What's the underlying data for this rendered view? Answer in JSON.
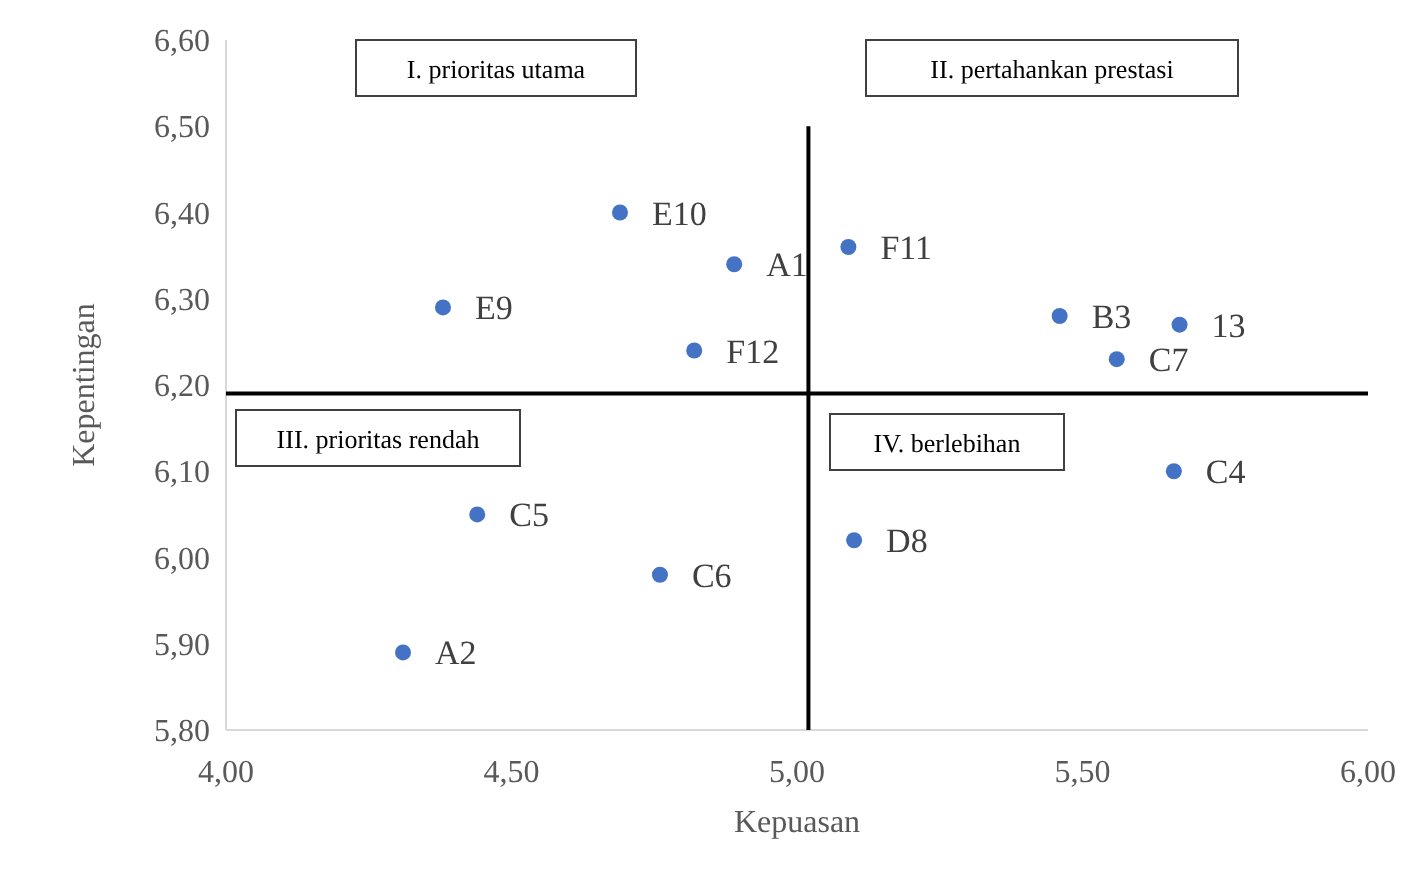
{
  "chart_data": {
    "type": "scatter",
    "xlabel": "Kepuasan",
    "ylabel": "Kepentingan",
    "xlim": [
      4.0,
      6.0
    ],
    "ylim": [
      5.8,
      6.6
    ],
    "xticks": [
      {
        "value": 4.0,
        "label": "4,00"
      },
      {
        "value": 4.5,
        "label": "4,50"
      },
      {
        "value": 5.0,
        "label": "5,00"
      },
      {
        "value": 5.5,
        "label": "5,50"
      },
      {
        "value": 6.0,
        "label": "6,00"
      }
    ],
    "yticks": [
      {
        "value": 5.8,
        "label": "5,80"
      },
      {
        "value": 5.9,
        "label": "5,90"
      },
      {
        "value": 6.0,
        "label": "6,00"
      },
      {
        "value": 6.1,
        "label": "6,10"
      },
      {
        "value": 6.2,
        "label": "6,20"
      },
      {
        "value": 6.3,
        "label": "6,30"
      },
      {
        "value": 6.4,
        "label": "6,40"
      },
      {
        "value": 6.5,
        "label": "6,50"
      },
      {
        "value": 6.6,
        "label": "6,60"
      }
    ],
    "grid": false,
    "series": [
      {
        "marker": "circle",
        "color": "#4472c4",
        "x": [
          4.69,
          4.89,
          4.38,
          4.82,
          5.09,
          5.46,
          5.67,
          5.56,
          5.66,
          5.1,
          4.44,
          4.76,
          4.31
        ],
        "values": [
          6.4,
          6.34,
          6.29,
          6.24,
          6.36,
          6.28,
          6.27,
          6.23,
          6.1,
          6.02,
          6.05,
          5.98,
          5.89
        ]
      },
      {
        "type": "line",
        "color": "#000000",
        "x": [
          5.02,
          5.02
        ],
        "values": [
          5.8,
          6.5
        ]
      },
      {
        "type": "line",
        "color": "#000000",
        "x": [
          4.0,
          6.0
        ],
        "values": [
          6.19,
          6.19
        ]
      }
    ],
    "annotations": [
      {
        "text": "E10",
        "x": 4.69,
        "y": 6.4
      },
      {
        "text": "A1",
        "x": 4.89,
        "y": 6.34
      },
      {
        "text": "E9",
        "x": 4.38,
        "y": 6.29
      },
      {
        "text": "F12",
        "x": 4.82,
        "y": 6.24
      },
      {
        "text": "F11",
        "x": 5.09,
        "y": 6.36
      },
      {
        "text": "B3",
        "x": 5.46,
        "y": 6.28
      },
      {
        "text": "13",
        "x": 5.67,
        "y": 6.27
      },
      {
        "text": "C7",
        "x": 5.56,
        "y": 6.23
      },
      {
        "text": "C4",
        "x": 5.66,
        "y": 6.1
      },
      {
        "text": "D8",
        "x": 5.1,
        "y": 6.02
      },
      {
        "text": "C5",
        "x": 4.44,
        "y": 6.05
      },
      {
        "text": "C6",
        "x": 4.76,
        "y": 5.98
      },
      {
        "text": "A2",
        "x": 4.31,
        "y": 5.89
      },
      "I. prioritas utama",
      "II. pertahankan prestasi",
      "III. prioritas rendah",
      "IV. berlebihan"
    ]
  }
}
